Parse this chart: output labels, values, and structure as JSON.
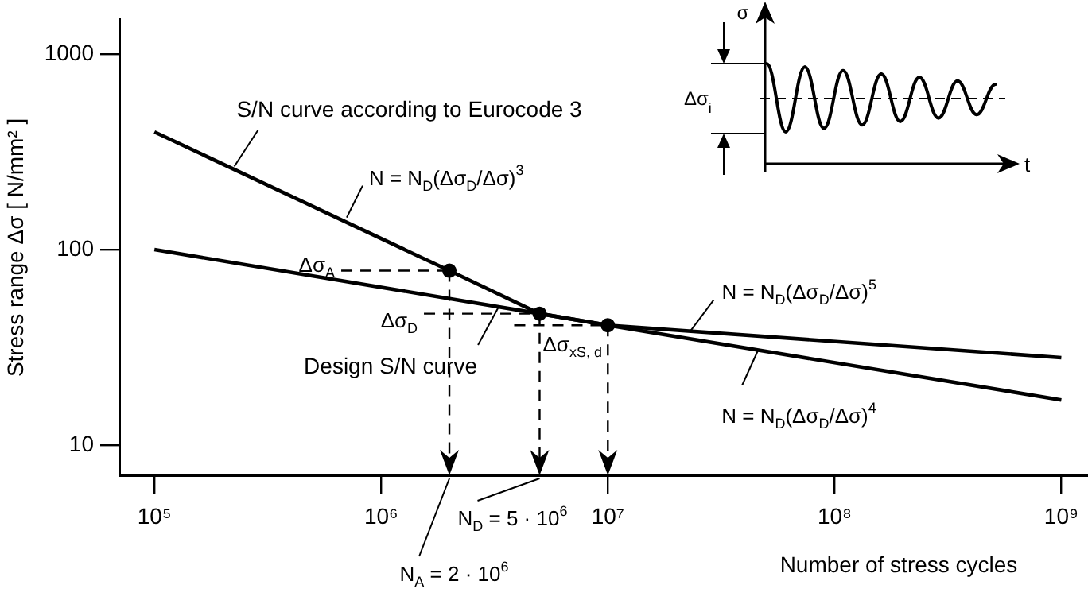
{
  "chart_data": {
    "type": "line",
    "xlabel": "Number of stress cycles",
    "ylabel": "Stress range Δσ [ N/mm² ]",
    "log": "xy",
    "grid": false,
    "legend": false,
    "marker": "none",
    "xlim": [
      70000,
      1300000000
    ],
    "ylim": [
      7,
      1500
    ],
    "xticks": [
      {
        "value": 100000,
        "label": "10⁵"
      },
      {
        "value": 1000000,
        "label": "10⁶"
      },
      {
        "value": 10000000,
        "label": "10⁷"
      },
      {
        "value": 100000000,
        "label": "10⁸"
      },
      {
        "value": 1000000000,
        "label": "10⁹"
      }
    ],
    "yticks": [
      10,
      100,
      1000
    ],
    "series": [
      {
        "type": "line",
        "color": "#000000",
        "x": [
          100000,
          2000000,
          5000000,
          10000000,
          1000000000
        ],
        "values": [
          400,
          78,
          47,
          41,
          17
        ]
      },
      {
        "type": "line",
        "color": "#000000",
        "x": [
          100000,
          5000000,
          10000000,
          1000000000
        ],
        "values": [
          100,
          47,
          41,
          28
        ]
      },
      {
        "type": "scatter",
        "marker": "circle",
        "color": "#000000",
        "x": [
          2000000,
          5000000,
          10000000
        ],
        "values": [
          78,
          47,
          41
        ]
      }
    ],
    "ref_lines": [
      {
        "axis": "x",
        "value": 2000000,
        "line_style": "dashed"
      },
      {
        "axis": "x",
        "value": 5000000,
        "line_style": "dashed"
      },
      {
        "axis": "x",
        "value": 10000000,
        "line_style": "dashed"
      },
      {
        "axis": "y",
        "value": 78,
        "label": "Δσ$_{A}$",
        "line_style": "dashed"
      },
      {
        "axis": "y",
        "value": 47,
        "label": "Δσ$_{D}$",
        "line_style": "dashed"
      },
      {
        "axis": "y",
        "value": 41,
        "label": "Δσ$_{xS, d}$",
        "line_style": "dashed"
      }
    ],
    "annotations": [
      {
        "text": "S/N curve according to Eurocode 3",
        "x": 225000,
        "y": 266
      },
      {
        "text": "N = N$_{D}$(Δσ$_{D}$/Δσ)$^{3}$",
        "x": 705000,
        "y": 146
      },
      {
        "text": "Design S/N curve",
        "x": 3300000,
        "y": 51
      },
      {
        "text": "N = N$_{D}$(Δσ$_{D}$/Δσ)$^{5}$",
        "x": 23000000,
        "y": 38
      },
      {
        "text": "N = N$_{D}$(Δσ$_{D}$/Δσ)$^{4}$",
        "x": 46000000,
        "y": 30.6
      },
      "N$_{A}$ = 2 · 10$^{6}$",
      "N$_{D}$ = 5 · 10$^{6}$",
      "σ",
      "t",
      "Δσ$_{i}$"
    ]
  }
}
